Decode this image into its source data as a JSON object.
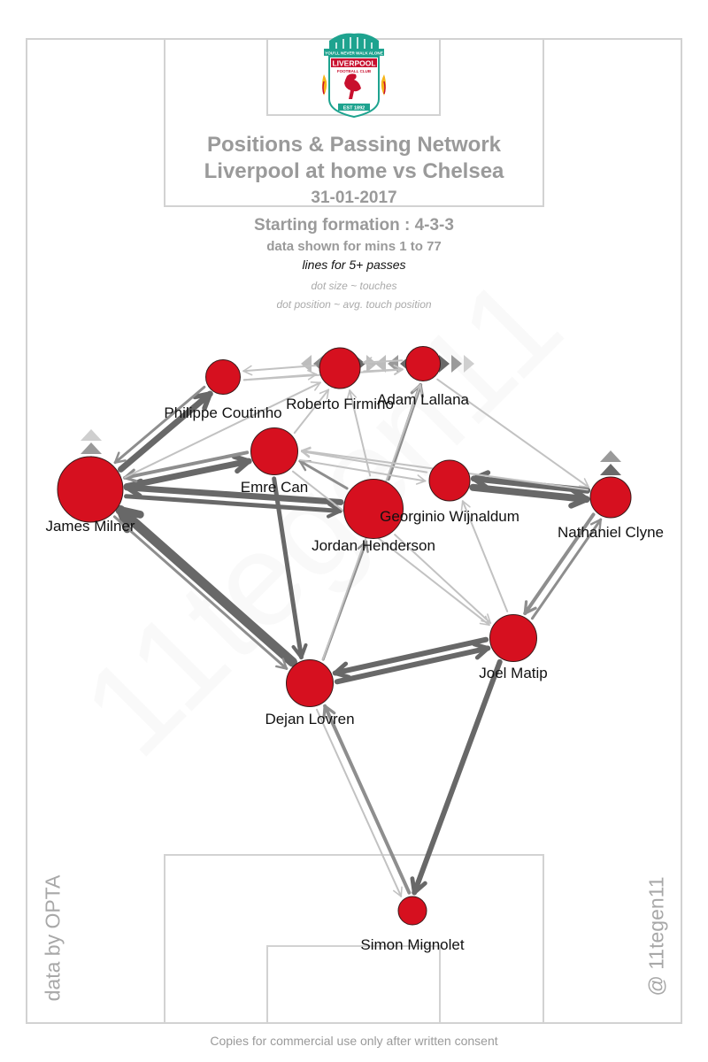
{
  "header": {
    "title_line1": "Positions & Passing Network",
    "title_line2": "Liverpool at home vs Chelsea",
    "date": "31-01-2017",
    "formation": "Starting formation : 4-3-3",
    "minutes": "data shown for mins 1 to 77",
    "lines_note": "lines for 5+ passes",
    "dot_size_note": "dot size ~ touches",
    "dot_position_note": "dot position ~ avg. touch position"
  },
  "logo": {
    "banner_text": "YOU'LL NEVER WALK ALONE",
    "club_text": "LIVERPOOL",
    "club_sub": "FOOTBALL CLUB",
    "est_text": "EST 1892",
    "colors": {
      "teal": "#1ea38f",
      "red": "#c8102e",
      "gold": "#f6b417"
    }
  },
  "credits": {
    "data_source": "data by OPTA",
    "author": "@ 11tegen11",
    "footer": "Copies for commercial use only after written consent"
  },
  "colors": {
    "node_fill": "#d6101f",
    "edge": "#6a6a6a",
    "pitch_line": "#d2d2d2"
  },
  "players": [
    {
      "id": "milner",
      "name": "James Milner",
      "touches": 8
    },
    {
      "id": "coutinho",
      "name": "Philippe Coutinho",
      "touches": 3
    },
    {
      "id": "firmino",
      "name": "Roberto Firmino",
      "touches": 4
    },
    {
      "id": "lallana",
      "name": "Adam Lallana",
      "touches": 3
    },
    {
      "id": "emrecan",
      "name": "Emre Can",
      "touches": 5
    },
    {
      "id": "wijnaldum",
      "name": "Georginio Wijnaldum",
      "touches": 4
    },
    {
      "id": "henderson",
      "name": "Jordan Henderson",
      "touches": 7
    },
    {
      "id": "clyne",
      "name": "Nathaniel Clyne",
      "touches": 4
    },
    {
      "id": "matip",
      "name": "Joel Matip",
      "touches": 5
    },
    {
      "id": "lovren",
      "name": "Dejan Lovren",
      "touches": 5
    },
    {
      "id": "mignolet",
      "name": "Simon Mignolet",
      "touches": 2
    }
  ],
  "edges": [
    {
      "from": "lovren",
      "to": "milner",
      "weight": 10
    },
    {
      "from": "wijnaldum",
      "to": "clyne",
      "weight": 7
    },
    {
      "from": "milner",
      "to": "coutinho",
      "weight": 6
    },
    {
      "from": "milner",
      "to": "emrecan",
      "weight": 6
    },
    {
      "from": "henderson",
      "to": "milner",
      "weight": 6
    },
    {
      "from": "clyne",
      "to": "wijnaldum",
      "weight": 6
    },
    {
      "from": "matip",
      "to": "lovren",
      "weight": 5
    },
    {
      "from": "lovren",
      "to": "matip",
      "weight": 5
    },
    {
      "from": "matip",
      "to": "mignolet",
      "weight": 5
    },
    {
      "from": "emrecan",
      "to": "lovren",
      "weight": 4
    },
    {
      "from": "milner",
      "to": "henderson",
      "weight": 4
    },
    {
      "from": "mignolet",
      "to": "lovren",
      "weight": 3
    },
    {
      "from": "henderson",
      "to": "lallana",
      "weight": 3
    },
    {
      "from": "clyne",
      "to": "matip",
      "weight": 3
    },
    {
      "from": "matip",
      "to": "clyne",
      "weight": 2
    },
    {
      "from": "emrecan",
      "to": "milner",
      "weight": 3
    },
    {
      "from": "coutinho",
      "to": "milner",
      "weight": 2
    },
    {
      "from": "milner",
      "to": "lovren",
      "weight": 2
    },
    {
      "from": "lovren",
      "to": "henderson",
      "weight": 2
    },
    {
      "from": "henderson",
      "to": "emrecan",
      "weight": 2
    },
    {
      "from": "emrecan",
      "to": "firmino",
      "weight": 1
    },
    {
      "from": "coutinho",
      "to": "firmino",
      "weight": 1
    },
    {
      "from": "firmino",
      "to": "coutinho",
      "weight": 1
    },
    {
      "from": "lallana",
      "to": "firmino",
      "weight": 1
    },
    {
      "from": "henderson",
      "to": "firmino",
      "weight": 1
    },
    {
      "from": "wijnaldum",
      "to": "emrecan",
      "weight": 1
    },
    {
      "from": "clyne",
      "to": "emrecan",
      "weight": 1
    },
    {
      "from": "lallana",
      "to": "clyne",
      "weight": 1
    },
    {
      "from": "lovren",
      "to": "mignolet",
      "weight": 1
    },
    {
      "from": "henderson",
      "to": "matip",
      "weight": 1
    },
    {
      "from": "emrecan",
      "to": "matip",
      "weight": 1
    },
    {
      "from": "lovren",
      "to": "lallana",
      "weight": 1
    },
    {
      "from": "matip",
      "to": "wijnaldum",
      "weight": 1
    },
    {
      "from": "emrecan",
      "to": "wijnaldum",
      "weight": 1
    },
    {
      "from": "firmino",
      "to": "lallana",
      "weight": 1
    },
    {
      "from": "coutinho",
      "to": "lallana",
      "weight": 1
    },
    {
      "from": "milner",
      "to": "firmino",
      "weight": 1
    }
  ]
}
